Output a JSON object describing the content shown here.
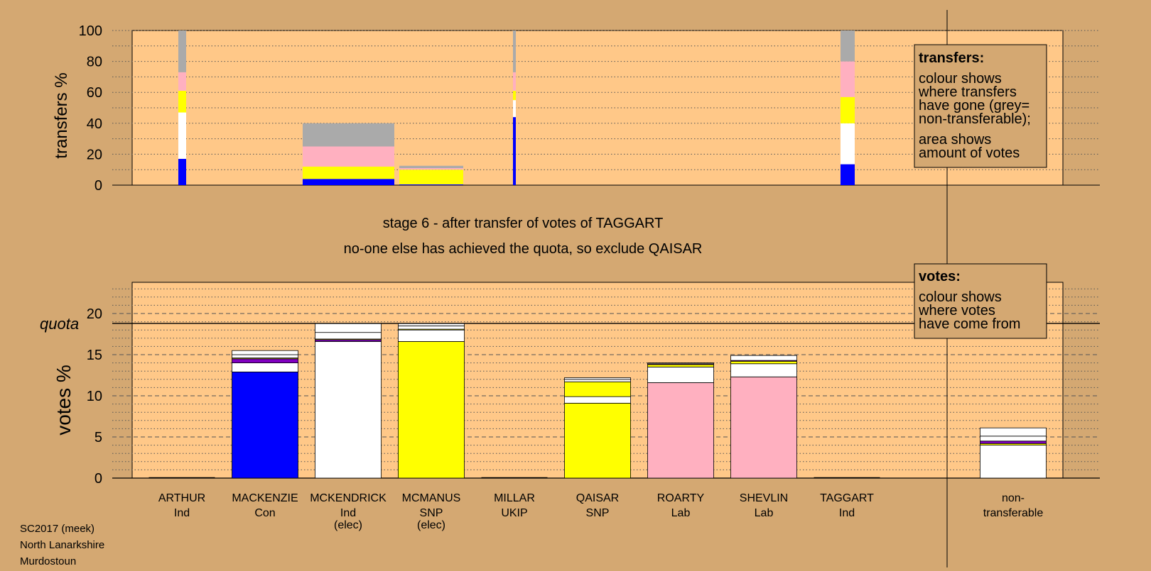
{
  "colors": {
    "page_bg": "#d4a872",
    "plot_bg": "#ffc888",
    "legend_bg": "#d4a872",
    "Con": "#0000ff",
    "SNP": "#ffff00",
    "Lab": "#ffb0c0",
    "Ind": "#ffffff",
    "UKIP": "#8000c0",
    "nontransferable": "#aaaaaa"
  },
  "stage": {
    "line1": "stage 6 - after transfer of votes of TAGGART",
    "line2": "no-one else has achieved the quota, so exclude QAISAR"
  },
  "footer": [
    "SC2017 (meek)",
    "North Lanarkshire",
    "Murdostoun"
  ],
  "legend": {
    "transfers_title": "transfers:",
    "transfers_lines1": [
      "colour shows",
      "where transfers",
      "have gone (grey=",
      "non-transferable);"
    ],
    "transfers_lines2": [
      "area shows",
      "amount of votes"
    ],
    "votes_title": "votes:",
    "votes_lines": [
      "colour shows",
      "where votes",
      "have come from"
    ]
  },
  "chart_data": [
    {
      "type": "bar",
      "ylabel": "transfers %",
      "ylim": [
        0,
        100
      ],
      "yticks": [
        0,
        20,
        40,
        60,
        80,
        100
      ],
      "grid": "dotted every 10",
      "bars": [
        {
          "candidate": "ARTHUR",
          "segments": [
            {
              "party": "Con",
              "from": 0,
              "to": 17
            },
            {
              "party": "Ind",
              "from": 17,
              "to": 47
            },
            {
              "party": "SNP",
              "from": 47,
              "to": 61
            },
            {
              "party": "Lab",
              "from": 61,
              "to": 73
            },
            {
              "party": "nontransferable",
              "from": 73,
              "to": 100
            }
          ]
        },
        {
          "candidate": "MCKENDRICK",
          "segments": [
            {
              "party": "Con",
              "from": 0,
              "to": 4
            },
            {
              "party": "SNP",
              "from": 4,
              "to": 12
            },
            {
              "party": "Lab",
              "from": 12,
              "to": 25
            },
            {
              "party": "nontransferable",
              "from": 25,
              "to": 40
            }
          ]
        },
        {
          "candidate": "MCMANUS",
          "segments": [
            {
              "party": "Con",
              "from": 0,
              "to": 0.5
            },
            {
              "party": "SNP",
              "from": 0.5,
              "to": 10
            },
            {
              "party": "Lab",
              "from": 10,
              "to": 11
            },
            {
              "party": "nontransferable",
              "from": 11,
              "to": 12.5
            }
          ]
        },
        {
          "candidate": "MILLAR",
          "segments": [
            {
              "party": "Con",
              "from": 0,
              "to": 44
            },
            {
              "party": "Ind",
              "from": 44,
              "to": 55
            },
            {
              "party": "SNP",
              "from": 55,
              "to": 61
            },
            {
              "party": "Lab",
              "from": 61,
              "to": 73
            },
            {
              "party": "nontransferable",
              "from": 73,
              "to": 100
            }
          ]
        },
        {
          "candidate": "TAGGART",
          "segments": [
            {
              "party": "Con",
              "from": 0,
              "to": 13.5
            },
            {
              "party": "Ind",
              "from": 13.5,
              "to": 40
            },
            {
              "party": "SNP",
              "from": 40,
              "to": 57
            },
            {
              "party": "Lab",
              "from": 57,
              "to": 80
            },
            {
              "party": "nontransferable",
              "from": 80,
              "to": 100
            }
          ]
        }
      ]
    },
    {
      "type": "bar",
      "ylabel": "votes %",
      "ylim": [
        0,
        23
      ],
      "yticks": [
        0,
        5,
        10,
        15,
        20
      ],
      "quota": 18.8,
      "quota_label": "quota",
      "grid": "dashed every 5, dotted every 1",
      "categories": [
        {
          "name": "ARTHUR",
          "party": "Ind",
          "note": ""
        },
        {
          "name": "MACKENZIE",
          "party": "Con",
          "note": ""
        },
        {
          "name": "MCKENDRICK",
          "party": "Ind",
          "note": "(elec)"
        },
        {
          "name": "MCMANUS",
          "party": "SNP",
          "note": "(elec)"
        },
        {
          "name": "MILLAR",
          "party": "UKIP",
          "note": ""
        },
        {
          "name": "QAISAR",
          "party": "SNP",
          "note": ""
        },
        {
          "name": "ROARTY",
          "party": "Lab",
          "note": ""
        },
        {
          "name": "SHEVLIN",
          "party": "Lab",
          "note": ""
        },
        {
          "name": "TAGGART",
          "party": "Ind",
          "note": ""
        },
        {
          "name": "non-",
          "party": "transferable",
          "note": ""
        }
      ],
      "stacks": [
        [],
        [
          {
            "party": "Con",
            "value": 12.9
          },
          {
            "party": "Ind",
            "value": 1.1
          },
          {
            "party": "UKIP",
            "value": 0.5
          },
          {
            "party": "SNP",
            "value": 0.1
          },
          {
            "party": "Ind",
            "value": 0.4
          },
          {
            "party": "Ind",
            "value": 0.5
          }
        ],
        [
          {
            "party": "Ind",
            "value": 16.6
          },
          {
            "party": "UKIP",
            "value": 0.2
          },
          {
            "party": "SNP",
            "value": 0.1
          },
          {
            "party": "Ind",
            "value": 0.8
          },
          {
            "party": "Ind",
            "value": 1.1
          }
        ],
        [
          {
            "party": "SNP",
            "value": 16.6
          },
          {
            "party": "Ind",
            "value": 1.4
          },
          {
            "party": "SNP",
            "value": 0.1
          },
          {
            "party": "Ind",
            "value": 0.4
          },
          {
            "party": "Ind",
            "value": 0.3
          }
        ],
        [],
        [
          {
            "party": "SNP",
            "value": 9.1
          },
          {
            "party": "Ind",
            "value": 0.8
          },
          {
            "party": "SNP",
            "value": 1.8
          },
          {
            "party": "Ind",
            "value": 0.3
          },
          {
            "party": "Ind",
            "value": 0.2
          }
        ],
        [
          {
            "party": "Lab",
            "value": 11.6
          },
          {
            "party": "Ind",
            "value": 1.9
          },
          {
            "party": "SNP",
            "value": 0.3
          },
          {
            "party": "UKIP",
            "value": 0.1
          },
          {
            "party": "Ind",
            "value": 0.1
          }
        ],
        [
          {
            "party": "Lab",
            "value": 12.3
          },
          {
            "party": "Ind",
            "value": 1.6
          },
          {
            "party": "SNP",
            "value": 0.3
          },
          {
            "party": "UKIP",
            "value": 0.1
          },
          {
            "party": "Ind",
            "value": 0.6
          }
        ],
        [],
        [
          {
            "party": "Ind",
            "value": 4.0
          },
          {
            "party": "SNP",
            "value": 0.2
          },
          {
            "party": "UKIP",
            "value": 0.3
          },
          {
            "party": "Ind",
            "value": 0.6
          },
          {
            "party": "Ind",
            "value": 1.0
          }
        ]
      ]
    }
  ]
}
